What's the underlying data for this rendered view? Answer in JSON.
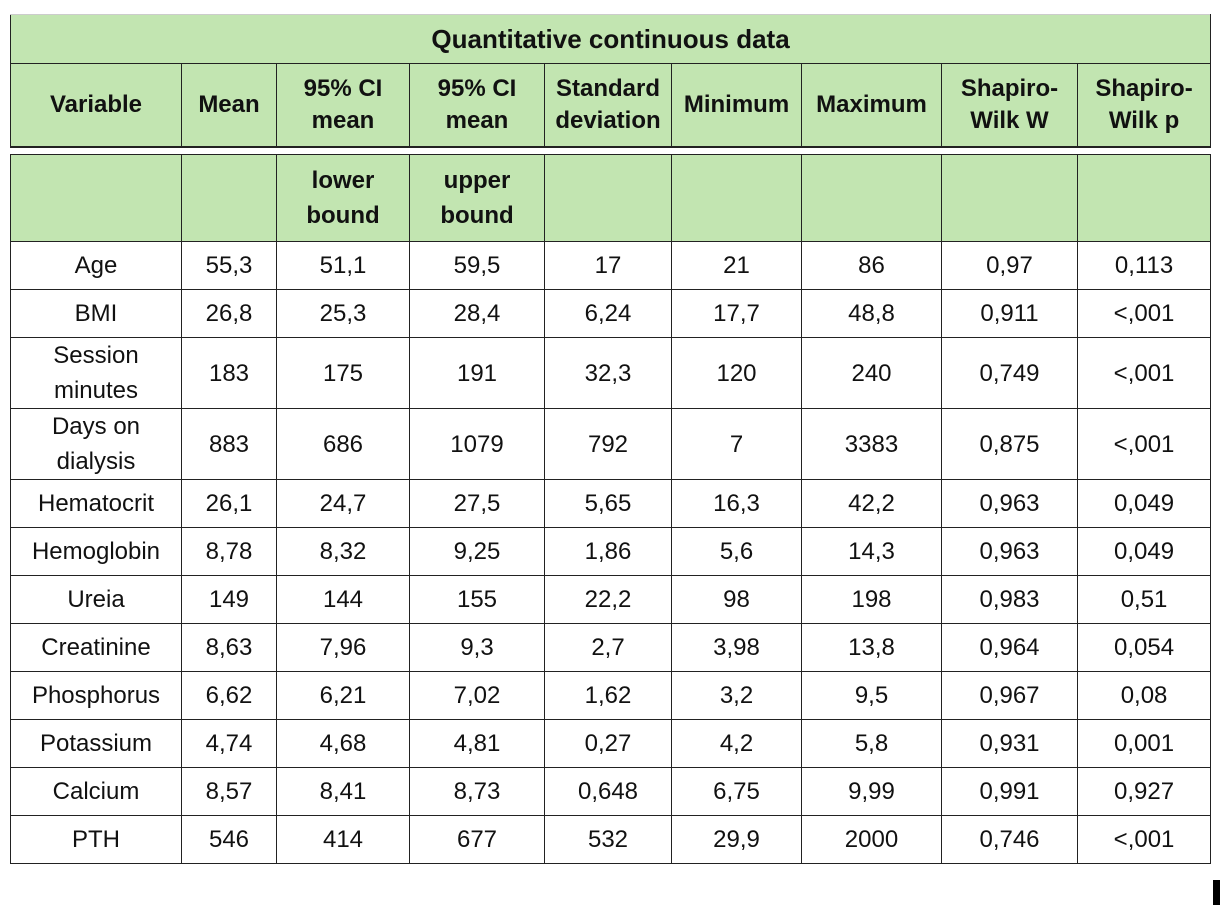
{
  "table": {
    "title": "Quantitative continuous data",
    "header": [
      "Variable",
      "Mean",
      "95% CI\nmean",
      "95% CI\nmean",
      "Standard\ndeviation",
      "Minimum",
      "Maximum",
      "Shapiro-\nWilk W",
      "Shapiro-\nWilk p"
    ],
    "subheader": [
      null,
      null,
      "lower\nbound",
      "upper\nbound",
      null,
      null,
      null,
      null,
      null
    ],
    "rows": [
      [
        "Age",
        "55,3",
        "51,1",
        "59,5",
        "17",
        "21",
        "86",
        "0,97",
        "0,113"
      ],
      [
        "BMI",
        "26,8",
        "25,3",
        "28,4",
        "6,24",
        "17,7",
        "48,8",
        "0,911",
        "<,001"
      ],
      [
        "Session\nminutes",
        "183",
        "175",
        "191",
        "32,3",
        "120",
        "240",
        "0,749",
        "<,001"
      ],
      [
        "Days on\ndialysis",
        "883",
        "686",
        "1079",
        "792",
        "7",
        "3383",
        "0,875",
        "<,001"
      ],
      [
        "Hematocrit",
        "26,1",
        "24,7",
        "27,5",
        "5,65",
        "16,3",
        "42,2",
        "0,963",
        "0,049"
      ],
      [
        "Hemoglobin",
        "8,78",
        "8,32",
        "9,25",
        "1,86",
        "5,6",
        "14,3",
        "0,963",
        "0,049"
      ],
      [
        "Ureia",
        "149",
        "144",
        "155",
        "22,2",
        "98",
        "198",
        "0,983",
        "0,51"
      ],
      [
        "Creatinine",
        "8,63",
        "7,96",
        "9,3",
        "2,7",
        "3,98",
        "13,8",
        "0,964",
        "0,054"
      ],
      [
        "Phosphorus",
        "6,62",
        "6,21",
        "7,02",
        "1,62",
        "3,2",
        "9,5",
        "0,967",
        "0,08"
      ],
      [
        "Potassium",
        "4,74",
        "4,68",
        "4,81",
        "0,27",
        "4,2",
        "5,8",
        "0,931",
        "0,001"
      ],
      [
        "Calcium",
        "8,57",
        "8,41",
        "8,73",
        "0,648",
        "6,75",
        "9,99",
        "0,991",
        "0,927"
      ],
      [
        "PTH",
        "546",
        "414",
        "677",
        "532",
        "29,9",
        "2000",
        "0,746",
        "<,001"
      ]
    ]
  }
}
